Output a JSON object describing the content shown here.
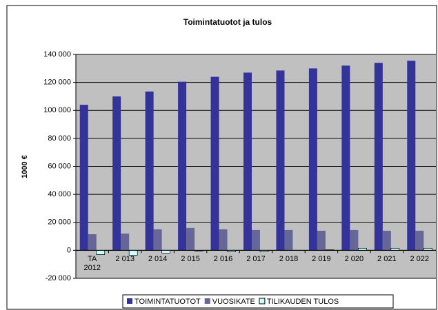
{
  "chart_data": {
    "type": "bar",
    "title": "Toimintatuotot ja tulos",
    "ylabel": "1000 €",
    "categories": [
      "TA 2012",
      "2 013",
      "2 014",
      "2 015",
      "2 016",
      "2 017",
      "2 018",
      "2 019",
      "2 020",
      "2 021",
      "2 022"
    ],
    "series": [
      {
        "name": "TOIMINTATUOTOT",
        "color": "#333399",
        "values": [
          104000,
          110000,
          113500,
          120500,
          124000,
          127000,
          128500,
          130000,
          132000,
          134000,
          135500
        ]
      },
      {
        "name": "VUOSIKATE",
        "color": "#666699",
        "values": [
          11500,
          12000,
          15000,
          16000,
          15000,
          14500,
          14500,
          14000,
          14500,
          14000,
          14000
        ]
      },
      {
        "name": "TILIKAUDEN TULOS",
        "color": "#ccffff",
        "values": [
          -3000,
          -3500,
          -2000,
          -500,
          -1000,
          -1000,
          0,
          500,
          1500,
          1500,
          1500
        ]
      }
    ],
    "ylim": [
      -20000,
      140000
    ],
    "yticks": [
      {
        "value": -20000,
        "label": "-20 000"
      },
      0,
      {
        "value": 20000,
        "label": "20 000"
      },
      {
        "value": 40000,
        "label": "40 000"
      },
      {
        "value": 60000,
        "label": "60 000"
      },
      {
        "value": 80000,
        "label": "80 000"
      },
      {
        "value": 100000,
        "label": "100 000"
      },
      {
        "value": 120000,
        "label": "120 000"
      },
      {
        "value": 140000,
        "label": "140 000"
      }
    ],
    "grid": true,
    "legend": "bottom"
  }
}
